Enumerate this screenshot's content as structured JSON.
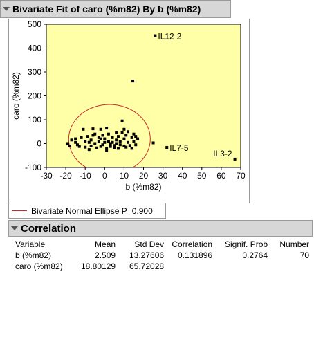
{
  "title": "Bivariate Fit of caro (%m82) By b (%m82)",
  "legend": {
    "label": "Bivariate Normal Ellipse P=0.900",
    "color": "#cc2a2a"
  },
  "correlation": {
    "title": "Correlation",
    "columns": [
      "Variable",
      "Mean",
      "Std Dev",
      "Correlation",
      "Signif. Prob",
      "Number"
    ],
    "rows": [
      [
        "b (%m82)",
        "2.509",
        "13.27606",
        "0.131896",
        "0.2764",
        "70"
      ],
      [
        "caro (%m82)",
        "18.80129",
        "65.72028",
        "",
        "",
        ""
      ]
    ]
  },
  "chart_data": {
    "type": "scatter",
    "xlabel": "b (%m82)",
    "ylabel": "caro (%m82)",
    "xlim": [
      -30,
      70
    ],
    "ylim": [
      -100,
      500
    ],
    "xticks": [
      -30,
      -20,
      -10,
      0,
      10,
      20,
      30,
      40,
      50,
      60,
      70
    ],
    "yticks": [
      -100,
      0,
      100,
      200,
      300,
      400,
      500
    ],
    "background": "#ffffa8",
    "grid": false,
    "ellipse": {
      "center": [
        2.5,
        18.8
      ],
      "x_radius_approx": 21,
      "y_radius_approx": 145,
      "color": "#cc2a2a"
    },
    "points": [
      [
        26,
        452
      ],
      [
        14.5,
        262
      ],
      [
        32,
        -16
      ],
      [
        67,
        -65
      ],
      [
        -19,
        0
      ],
      [
        -18,
        -10
      ],
      [
        -15,
        20
      ],
      [
        -15,
        5
      ],
      [
        -13,
        -12
      ],
      [
        -12,
        25
      ],
      [
        -11,
        60
      ],
      [
        -10,
        10
      ],
      [
        -10,
        -15
      ],
      [
        -9,
        30
      ],
      [
        -8,
        5
      ],
      [
        -7,
        15
      ],
      [
        -7,
        -10
      ],
      [
        -6,
        62
      ],
      [
        -5,
        40
      ],
      [
        -5,
        0
      ],
      [
        -4,
        -18
      ],
      [
        -3,
        25
      ],
      [
        -3,
        8
      ],
      [
        -2,
        -12
      ],
      [
        -2,
        60
      ],
      [
        -1,
        35
      ],
      [
        -1,
        -5
      ],
      [
        0,
        20
      ],
      [
        0,
        5
      ],
      [
        1,
        65
      ],
      [
        1,
        -20
      ],
      [
        1,
        -30
      ],
      [
        2,
        40
      ],
      [
        2,
        10
      ],
      [
        3,
        0
      ],
      [
        3,
        -12
      ],
      [
        4,
        25
      ],
      [
        4,
        5
      ],
      [
        5,
        -8
      ],
      [
        5,
        -18
      ],
      [
        6,
        15
      ],
      [
        6,
        0
      ],
      [
        7,
        30
      ],
      [
        7,
        -20
      ],
      [
        8,
        8
      ],
      [
        8,
        -5
      ],
      [
        9,
        95
      ],
      [
        9,
        45
      ],
      [
        10,
        20
      ],
      [
        10,
        -10
      ],
      [
        10,
        60
      ],
      [
        11,
        35
      ],
      [
        11,
        -15
      ],
      [
        12,
        50
      ],
      [
        12,
        5
      ],
      [
        13,
        -8
      ],
      [
        14,
        25
      ],
      [
        14,
        -20
      ],
      [
        15,
        40
      ],
      [
        15,
        10
      ],
      [
        16,
        30
      ],
      [
        16,
        -5
      ],
      [
        17,
        20
      ],
      [
        25,
        3
      ],
      [
        -17,
        15
      ],
      [
        -14,
        -5
      ],
      [
        -8,
        -25
      ],
      [
        -6,
        35
      ],
      [
        -2,
        20
      ],
      [
        6,
        45
      ]
    ],
    "annotations": [
      {
        "text": "IL12-2",
        "x": 26,
        "y": 452
      },
      {
        "text": "IL7-5",
        "x": 32,
        "y": -16
      },
      {
        "text": "IL3-2",
        "x": 67,
        "y": -65
      }
    ]
  }
}
